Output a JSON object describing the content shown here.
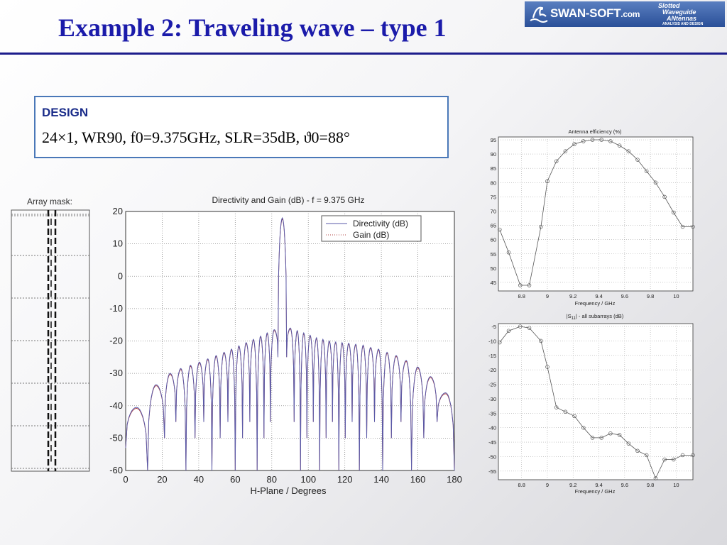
{
  "slide": {
    "title": "Example 2: Traveling wave – type 1",
    "logo": {
      "brand": "SWAN-SOFT",
      "brand_suffix": ".com",
      "line1": "Slotted",
      "line2": "Waveguide",
      "line3": "ANtennas",
      "line4": "ANALYSIS AND DESIGN"
    },
    "design": {
      "heading": "DESIGN",
      "spec": "24×1, WR90, f0=9.375GHz, SLR=35dB, ϑ0=88°"
    },
    "colors": {
      "title": "#1b1baa",
      "rule": "#1d1d8c",
      "box_border": "#4a78b8",
      "directivity": "#5a5aa8",
      "gain": "#b04040"
    }
  },
  "chart_data": [
    {
      "type": "diagram",
      "title": "Array mask:",
      "slots": 24
    },
    {
      "type": "line",
      "title": "Directivity and Gain (dB) - f = 9.375 GHz",
      "xlabel": "H-Plane / Degrees",
      "ylabel": "",
      "xlim": [
        0,
        180
      ],
      "ylim": [
        -60,
        20
      ],
      "xticks": [
        "0",
        "20",
        "40",
        "60",
        "80",
        "100",
        "120",
        "140",
        "160",
        "180"
      ],
      "yticks": [
        "20",
        "10",
        "0",
        "-10",
        "-20",
        "-30",
        "-40",
        "-50",
        "-60"
      ],
      "grid": true,
      "legend": "top-right",
      "series": [
        {
          "name": "Directivity (dB)",
          "style": "solid",
          "peak": {
            "x": 85.8,
            "y": 18
          }
        },
        {
          "name": "Gain (dB)",
          "style": "dotted"
        }
      ],
      "side_lobe_peaks": [
        {
          "x": 6,
          "y": -40.5
        },
        {
          "x": 18,
          "y": -33.5
        },
        {
          "x": 24.5,
          "y": -30
        },
        {
          "x": 30.5,
          "y": -28.5
        },
        {
          "x": 35.5,
          "y": -27.5
        },
        {
          "x": 40.5,
          "y": -26.5
        },
        {
          "x": 45,
          "y": -25.5
        },
        {
          "x": 49.5,
          "y": -24.5
        },
        {
          "x": 54,
          "y": -23.5
        },
        {
          "x": 58,
          "y": -22.5
        },
        {
          "x": 62,
          "y": -21.5
        },
        {
          "x": 66,
          "y": -20.5
        },
        {
          "x": 70,
          "y": -19.5
        },
        {
          "x": 74,
          "y": -18.5
        },
        {
          "x": 77.5,
          "y": -17.5
        },
        {
          "x": 81,
          "y": -16.5
        },
        {
          "x": 85.8,
          "y": 18
        },
        {
          "x": 90.5,
          "y": -16
        },
        {
          "x": 94,
          "y": -16.8
        },
        {
          "x": 97.5,
          "y": -17.5
        },
        {
          "x": 101,
          "y": -18.2
        },
        {
          "x": 104.5,
          "y": -19
        },
        {
          "x": 108,
          "y": -19.5
        },
        {
          "x": 111.5,
          "y": -20
        },
        {
          "x": 115,
          "y": -20.3
        },
        {
          "x": 118.5,
          "y": -20.5
        },
        {
          "x": 122,
          "y": -20.7
        },
        {
          "x": 126,
          "y": -21
        },
        {
          "x": 130,
          "y": -21.3
        },
        {
          "x": 134,
          "y": -22
        },
        {
          "x": 138.5,
          "y": -22.5
        },
        {
          "x": 143,
          "y": -23.5
        },
        {
          "x": 148,
          "y": -24.5
        },
        {
          "x": 153.5,
          "y": -26
        },
        {
          "x": 159.5,
          "y": -28
        },
        {
          "x": 167,
          "y": -31
        },
        {
          "x": 174,
          "y": -36
        }
      ]
    },
    {
      "type": "line",
      "title": "Antenna efficiency (%)",
      "xlabel": "Frequency / GHz",
      "ylabel": "",
      "xlim": [
        8.62,
        10.13
      ],
      "ylim": [
        42,
        96
      ],
      "xticks": [
        "8.8",
        "9",
        "9.2",
        "9.4",
        "9.6",
        "9.8",
        "10"
      ],
      "yticks": [
        "95",
        "90",
        "85",
        "80",
        "75",
        "70",
        "65",
        "60",
        "55",
        "50",
        "45"
      ],
      "grid": true,
      "series": [
        {
          "name": "",
          "x": [
            8.63,
            8.7,
            8.79,
            8.86,
            8.95,
            9.0,
            9.07,
            9.14,
            9.21,
            9.28,
            9.35,
            9.42,
            9.49,
            9.56,
            9.63,
            9.7,
            9.77,
            9.84,
            9.91,
            9.98,
            10.05,
            10.13
          ],
          "y": [
            63.5,
            55.5,
            44,
            44,
            64.5,
            80.5,
            87.5,
            91,
            93.5,
            94.5,
            95,
            95,
            94.5,
            93,
            91,
            88,
            84,
            80,
            75,
            69.5,
            64.5,
            64.5
          ]
        }
      ]
    },
    {
      "type": "line",
      "title": "|S11| - all subarrays (dB)",
      "xlabel": "Frequency / GHz",
      "ylabel": "",
      "xlim": [
        8.62,
        10.13
      ],
      "ylim": [
        -58,
        -4
      ],
      "xticks": [
        "8.8",
        "9",
        "9.2",
        "9.4",
        "9.6",
        "9.8",
        "10"
      ],
      "yticks": [
        "-5",
        "-10",
        "-15",
        "-20",
        "-25",
        "-30",
        "-35",
        "-40",
        "-45",
        "-50",
        "-55"
      ],
      "grid": true,
      "series": [
        {
          "name": "",
          "x": [
            8.63,
            8.7,
            8.79,
            8.86,
            8.95,
            9.0,
            9.07,
            9.14,
            9.21,
            9.28,
            9.35,
            9.42,
            9.49,
            9.56,
            9.63,
            9.7,
            9.77,
            9.84,
            9.91,
            9.98,
            10.05,
            10.13
          ],
          "y": [
            -10.5,
            -6.5,
            -5,
            -5.5,
            -10,
            -19,
            -33,
            -34.5,
            -36,
            -40,
            -43.5,
            -43.5,
            -42,
            -42.5,
            -45.5,
            -48,
            -49.5,
            -57.5,
            -51,
            -51,
            -49.5,
            -49.5
          ]
        }
      ]
    }
  ]
}
